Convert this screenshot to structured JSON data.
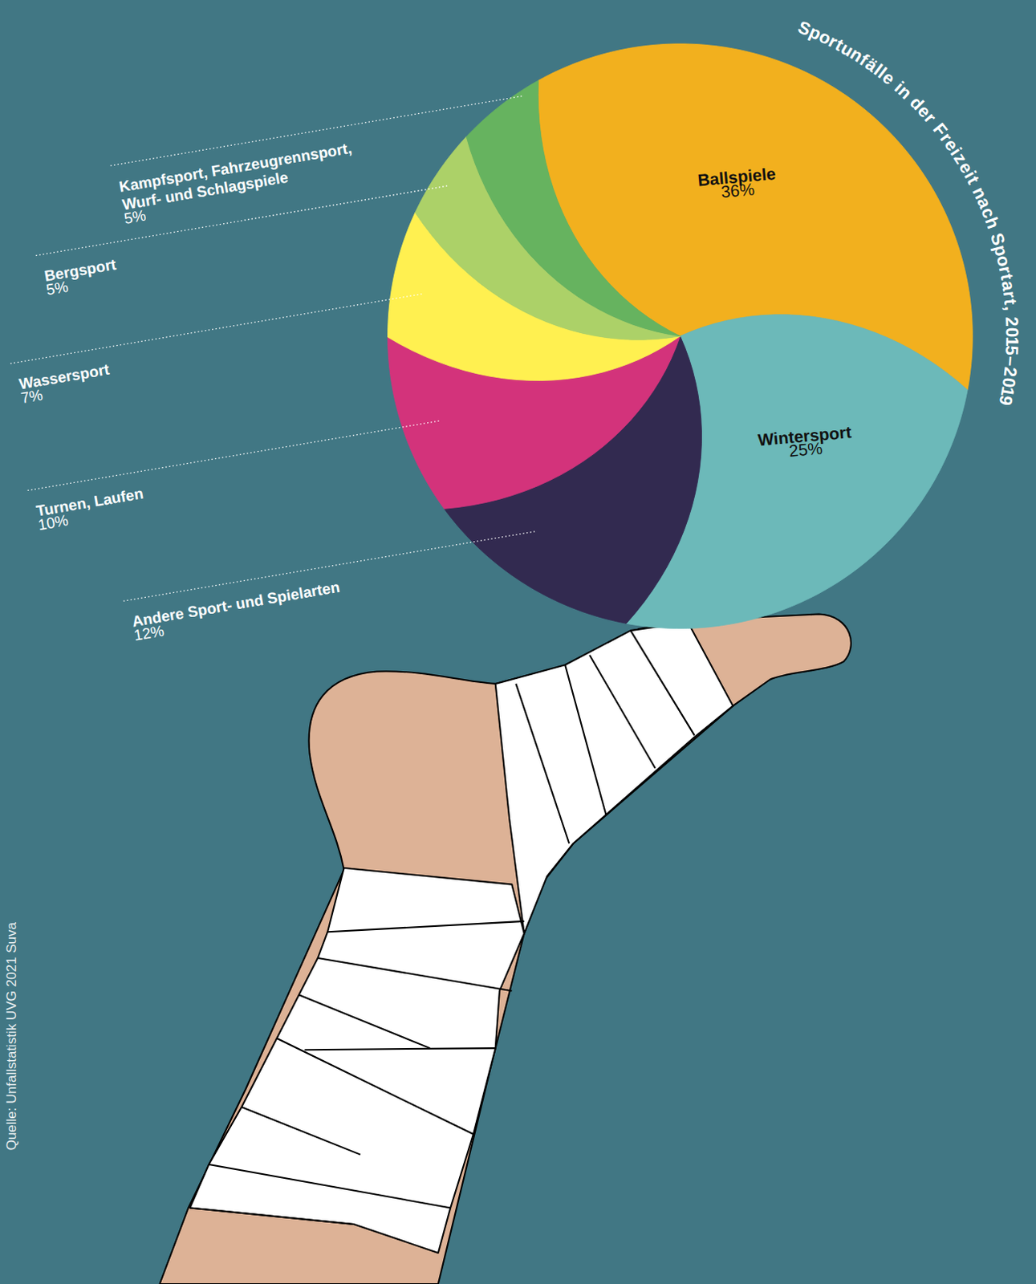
{
  "chart_data": {
    "type": "pie",
    "title": "Sportunfälle in der Freizeit nach Sportart, 2015–2019",
    "categories": [
      "Ballspiele",
      "Wintersport",
      "Andere Sport- und Spielarten",
      "Turnen, Laufen",
      "Wassersport",
      "Bergsport",
      "Kampfsport, Fahrzeugrennsport, Wurf- und Schlagspiele"
    ],
    "values": [
      36,
      25,
      12,
      10,
      7,
      5,
      5
    ],
    "value_labels": [
      "36%",
      "25%",
      "12%",
      "10%",
      "7%",
      "5%",
      "5%"
    ],
    "colors": [
      "#f2b01e",
      "#6cb9b9",
      "#322a50",
      "#d3337b",
      "#fff050",
      "#acd168",
      "#66b35f"
    ],
    "data_labels": true,
    "source": "Quelle: Unfallstatistik UVG 2021 Suva"
  }
}
